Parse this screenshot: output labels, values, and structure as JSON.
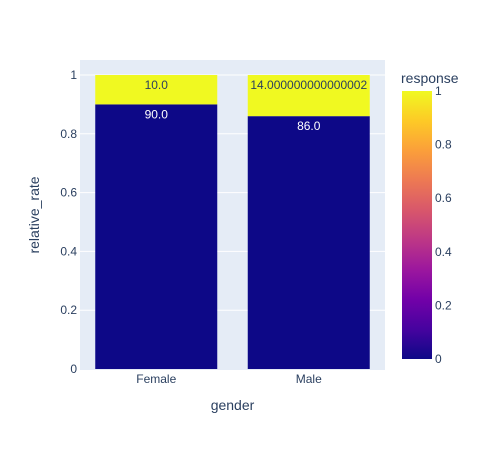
{
  "chart_data": {
    "type": "bar",
    "barmode": "stack",
    "categories": [
      "Female",
      "Male"
    ],
    "series": [
      {
        "response": 0,
        "values": [
          0.9,
          0.86
        ],
        "labels": [
          "90.0",
          "86.0"
        ]
      },
      {
        "response": 1,
        "values": [
          0.1,
          0.14
        ],
        "labels": [
          "10.0",
          "14.000000000000002"
        ]
      }
    ],
    "xlabel": "gender",
    "ylabel": "relative_rate",
    "ylim": [
      0,
      1
    ],
    "yticks": [
      "0",
      "0.2",
      "0.4",
      "0.6",
      "0.8",
      "1"
    ],
    "colorbar": {
      "title": "response",
      "range": [
        0,
        1
      ],
      "ticks": [
        "0",
        "0.2",
        "0.4",
        "0.6",
        "0.8",
        "1"
      ],
      "colorscale": [
        "#0d0887",
        "#46039f",
        "#7201a8",
        "#9c179e",
        "#bd3786",
        "#d8576b",
        "#ed7953",
        "#fb9f3a",
        "#fdca26",
        "#f0f921"
      ]
    },
    "grid": true,
    "legend": "right",
    "colors": {
      "plot_bg": "#e5ecf6",
      "grid": "#ffffff",
      "text": "#2a3f5f"
    }
  }
}
